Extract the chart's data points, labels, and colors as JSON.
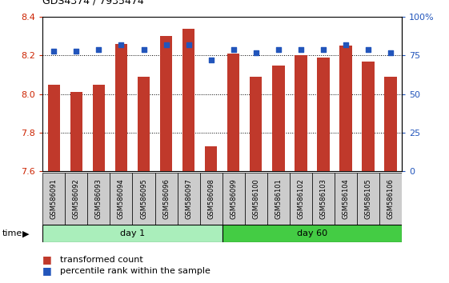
{
  "title": "GDS4374 / 7935474",
  "samples": [
    "GSM586091",
    "GSM586092",
    "GSM586093",
    "GSM586094",
    "GSM586095",
    "GSM586096",
    "GSM586097",
    "GSM586098",
    "GSM586099",
    "GSM586100",
    "GSM586101",
    "GSM586102",
    "GSM586103",
    "GSM586104",
    "GSM586105",
    "GSM586106"
  ],
  "bar_values": [
    8.05,
    8.01,
    8.05,
    8.26,
    8.09,
    8.3,
    8.34,
    7.73,
    8.21,
    8.09,
    8.15,
    8.2,
    8.19,
    8.25,
    8.17,
    8.09
  ],
  "dot_values": [
    78,
    78,
    79,
    82,
    79,
    82,
    82,
    72,
    79,
    77,
    79,
    79,
    79,
    82,
    79,
    77
  ],
  "day1_count": 8,
  "day60_count": 8,
  "ylim": [
    7.6,
    8.4
  ],
  "yticks": [
    7.6,
    7.8,
    8.0,
    8.2,
    8.4
  ],
  "y2lim": [
    0,
    100
  ],
  "y2ticks": [
    0,
    25,
    50,
    75,
    100
  ],
  "y2ticklabels": [
    "0",
    "25",
    "50",
    "75",
    "100%"
  ],
  "bar_color": "#c0392b",
  "dot_color": "#2255bb",
  "grid_color": "#000000",
  "bg_color": "#ffffff",
  "tick_label_color_left": "#cc2200",
  "tick_label_color_right": "#2255bb",
  "day1_color": "#aaeebb",
  "day60_color": "#44cc44",
  "cell_color": "#cccccc",
  "label_bar": "transformed count",
  "label_dot": "percentile rank within the sample",
  "xlabel_time": "time",
  "day1_label": "day 1",
  "day60_label": "day 60"
}
